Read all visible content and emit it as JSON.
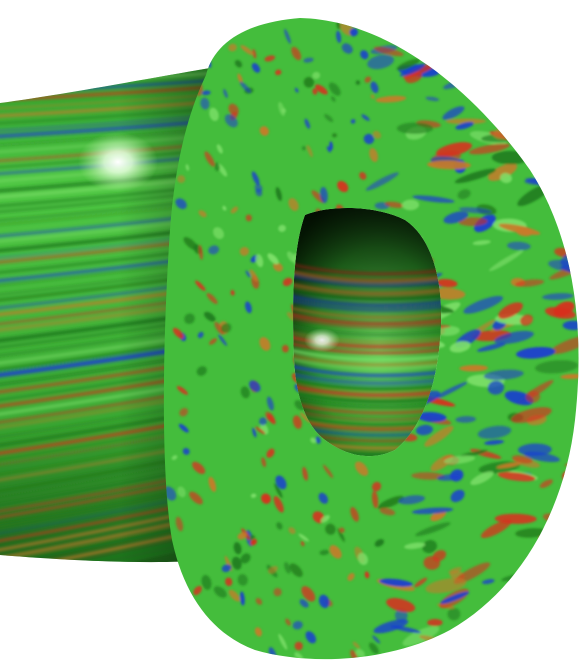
{
  "scene": {
    "subject": "torus-turbulence-visualization",
    "palette": {
      "background": "#ffffff",
      "base_green": "#3fb83a",
      "light_green": "#7ee06a",
      "dark_green": "#1e7a1c",
      "red": "#d8301e",
      "orange": "#c97a2a",
      "blue": "#1a3fd0",
      "shadow": "#0a2a08",
      "highlight": "#ffffff"
    },
    "blob_count": 520,
    "random_seed": 7
  }
}
